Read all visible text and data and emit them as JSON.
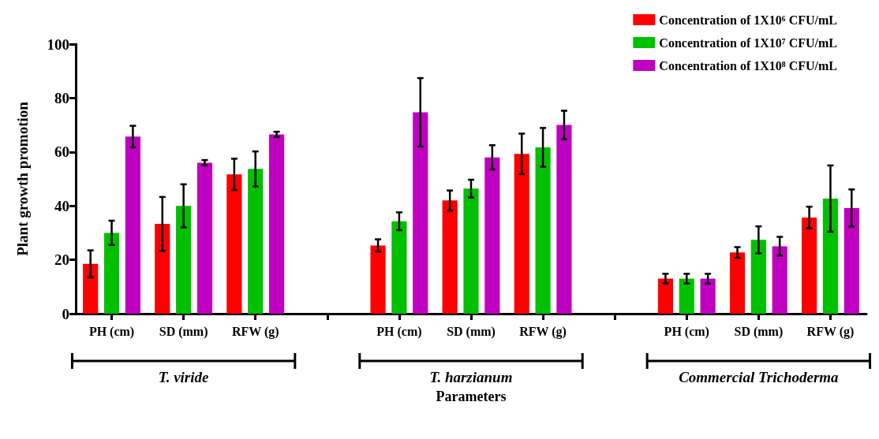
{
  "chart_data": {
    "type": "bar",
    "categories": [
      "PH (cm)",
      "SD (mm)",
      "RFW (g)",
      null,
      "PH (cm)",
      "SD (mm)",
      "RFW (g)",
      null,
      "PH (cm)",
      "SD (mm)",
      "RFW (g)"
    ],
    "series": [
      {
        "name": "Concentration of 1X10⁶ CFU/mL",
        "color": "#ff0000",
        "values": [
          18.5,
          33.3,
          51.7,
          null,
          25.3,
          42,
          59.3,
          null,
          13,
          22.7,
          35.7
        ],
        "errors": [
          5,
          10,
          5.8,
          null,
          2.3,
          3.7,
          7.5,
          null,
          1.8,
          2,
          4
        ]
      },
      {
        "name": "Concentration of 1X10⁷ CFU/mL",
        "color": "#00c000",
        "values": [
          30,
          40,
          53.7,
          null,
          34.3,
          46.4,
          61.7,
          null,
          13,
          27.4,
          42.7
        ],
        "errors": [
          4.5,
          8,
          6.5,
          null,
          3.3,
          3.3,
          7.2,
          null,
          1.8,
          5,
          12.3
        ]
      },
      {
        "name": "Concentration of 1X10⁸ CFU/mL",
        "color": "#c000c0",
        "values": [
          65.7,
          56,
          66.5,
          null,
          74.7,
          58,
          70,
          null,
          13,
          25,
          39.2
        ],
        "errors": [
          4,
          1,
          1,
          null,
          12.7,
          4.5,
          5.3,
          null,
          1.8,
          3.5,
          6.9
        ]
      }
    ],
    "xlabel": "Parameters",
    "ylabel": "Plant growth promotion",
    "annotations": [
      "T. viride",
      "T. harzianum",
      "Commercial Trichoderma"
    ],
    "ylim": [
      0,
      100
    ],
    "yticks": [
      0,
      20,
      40,
      60,
      80,
      100
    ],
    "grid": false,
    "legend": "top right"
  }
}
